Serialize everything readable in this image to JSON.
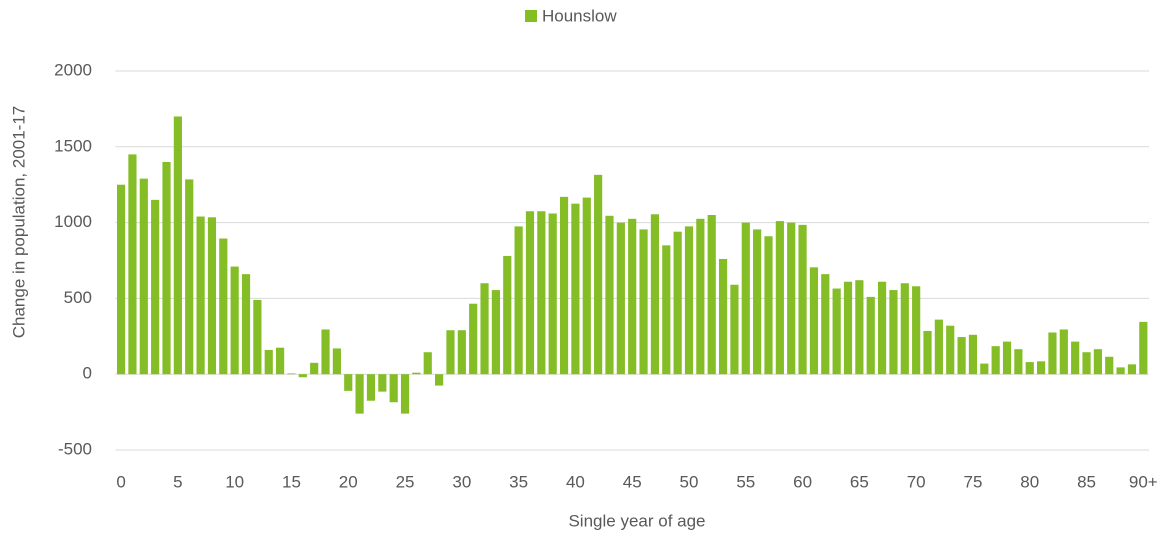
{
  "chart_data": {
    "type": "bar",
    "x_label": "Single year of age",
    "y_label": "Change in population, 2001-17",
    "categories": [
      "0",
      null,
      null,
      null,
      null,
      "5",
      null,
      null,
      null,
      null,
      "10",
      null,
      null,
      null,
      null,
      "15",
      null,
      null,
      null,
      null,
      "20",
      null,
      null,
      null,
      null,
      "25",
      null,
      null,
      null,
      null,
      "30",
      null,
      null,
      null,
      null,
      "35",
      null,
      null,
      null,
      null,
      "40",
      null,
      null,
      null,
      null,
      "45",
      null,
      null,
      null,
      null,
      "50",
      null,
      null,
      null,
      null,
      "55",
      null,
      null,
      null,
      null,
      "60",
      null,
      null,
      null,
      null,
      "65",
      null,
      null,
      null,
      null,
      "70",
      null,
      null,
      null,
      null,
      "75",
      null,
      null,
      null,
      null,
      "80",
      null,
      null,
      null,
      null,
      "85",
      null,
      null,
      null,
      null,
      "90+"
    ],
    "series": [
      {
        "name": "Hounslow",
        "color": "#84bd26",
        "values": [
          1250,
          1450,
          1290,
          1150,
          1400,
          1700,
          1285,
          1040,
          1035,
          895,
          710,
          660,
          490,
          160,
          175,
          5,
          -20,
          75,
          295,
          170,
          -110,
          -260,
          -175,
          -115,
          -185,
          -260,
          10,
          145,
          -75,
          290,
          290,
          465,
          600,
          555,
          780,
          975,
          1075,
          1075,
          1060,
          1170,
          1125,
          1165,
          1315,
          1045,
          1000,
          1025,
          955,
          1055,
          850,
          940,
          975,
          1025,
          1050,
          760,
          590,
          1000,
          955,
          910,
          1010,
          1000,
          985,
          705,
          660,
          565,
          610,
          620,
          510,
          610,
          555,
          600,
          580,
          285,
          360,
          320,
          245,
          260,
          70,
          185,
          215,
          165,
          80,
          85,
          275,
          295,
          215,
          145,
          165,
          115,
          45,
          65,
          345
        ]
      }
    ],
    "ylim": [
      -500,
      2000
    ],
    "yticks": [
      -500,
      0,
      500,
      1000,
      1500,
      2000
    ],
    "grid": true,
    "legend": "top"
  }
}
